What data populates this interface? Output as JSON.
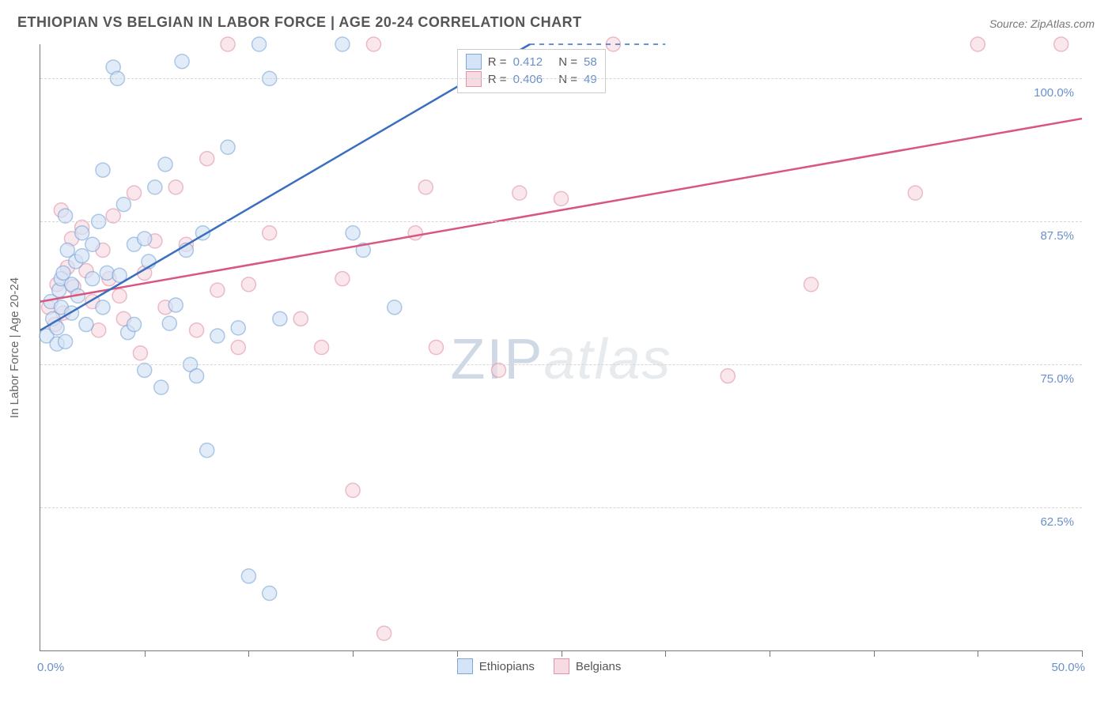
{
  "title": "ETHIOPIAN VS BELGIAN IN LABOR FORCE | AGE 20-24 CORRELATION CHART",
  "source": "Source: ZipAtlas.com",
  "watermark": {
    "zip": "ZIP",
    "atlas": "atlas"
  },
  "axes": {
    "ylabel": "In Labor Force | Age 20-24",
    "xlim": [
      0,
      50
    ],
    "ylim": [
      50,
      103
    ],
    "xticks": [
      5,
      10,
      15,
      20,
      25,
      30,
      35,
      40,
      45,
      50
    ],
    "ygrid": [
      62.5,
      75.0,
      87.5,
      100.0
    ],
    "ygrid_labels": [
      "62.5%",
      "75.0%",
      "87.5%",
      "100.0%"
    ],
    "xmin_label": "0.0%",
    "xmax_label": "50.0%",
    "grid_color": "#d6d6d6",
    "axis_color": "#777777",
    "label_color_blue": "#6a90c9",
    "label_fontsize": 15
  },
  "series": {
    "ethiopians": {
      "label": "Ethiopians",
      "marker_radius": 9,
      "fill": "#d4e3f6",
      "stroke": "#7ea8d8",
      "line_stroke": "#3a6fbf",
      "line_width": 2.5,
      "r_value": "0.412",
      "n_value": "58",
      "regression": {
        "x1": 0,
        "y1": 78.0,
        "x2": 23.5,
        "y2": 103.0,
        "cont_x2": 30,
        "cont_y2": 103.0
      },
      "points": [
        [
          0.3,
          77.5
        ],
        [
          0.5,
          80.5
        ],
        [
          0.6,
          79.0
        ],
        [
          0.8,
          78.2
        ],
        [
          0.8,
          76.8
        ],
        [
          0.9,
          81.5
        ],
        [
          1.0,
          80.0
        ],
        [
          1.0,
          82.5
        ],
        [
          1.1,
          83.0
        ],
        [
          1.2,
          77.0
        ],
        [
          1.2,
          88.0
        ],
        [
          1.3,
          85.0
        ],
        [
          1.5,
          82.0
        ],
        [
          1.5,
          79.5
        ],
        [
          1.7,
          84.0
        ],
        [
          1.8,
          81.0
        ],
        [
          2.0,
          86.5
        ],
        [
          2.0,
          84.5
        ],
        [
          2.2,
          78.5
        ],
        [
          2.5,
          85.5
        ],
        [
          2.5,
          82.5
        ],
        [
          2.8,
          87.5
        ],
        [
          3.0,
          80.0
        ],
        [
          3.0,
          92.0
        ],
        [
          3.2,
          83.0
        ],
        [
          3.5,
          101.0
        ],
        [
          3.7,
          100.0
        ],
        [
          3.8,
          82.8
        ],
        [
          4.0,
          89.0
        ],
        [
          4.2,
          77.8
        ],
        [
          4.5,
          85.5
        ],
        [
          4.5,
          78.5
        ],
        [
          5.0,
          86.0
        ],
        [
          5.0,
          74.5
        ],
        [
          5.2,
          84.0
        ],
        [
          5.5,
          90.5
        ],
        [
          5.8,
          73.0
        ],
        [
          6.0,
          92.5
        ],
        [
          6.2,
          78.6
        ],
        [
          6.5,
          80.2
        ],
        [
          6.8,
          101.5
        ],
        [
          7.0,
          85.0
        ],
        [
          7.2,
          75.0
        ],
        [
          7.5,
          74.0
        ],
        [
          7.8,
          86.5
        ],
        [
          8.0,
          67.5
        ],
        [
          8.5,
          77.5
        ],
        [
          9.0,
          94.0
        ],
        [
          9.5,
          78.2
        ],
        [
          10.0,
          56.5
        ],
        [
          10.5,
          103.0
        ],
        [
          11.0,
          100.0
        ],
        [
          11.0,
          55.0
        ],
        [
          11.5,
          79.0
        ],
        [
          14.5,
          103.0
        ],
        [
          15.0,
          86.5
        ],
        [
          15.5,
          85.0
        ],
        [
          17.0,
          80.0
        ]
      ]
    },
    "belgians": {
      "label": "Belgians",
      "marker_radius": 9,
      "fill": "#f6dbe3",
      "stroke": "#e195ac",
      "line_stroke": "#d8567f",
      "line_width": 2.5,
      "r_value": "0.406",
      "n_value": "49",
      "regression": {
        "x1": 0,
        "y1": 80.5,
        "x2": 50,
        "y2": 96.5
      },
      "points": [
        [
          0.4,
          80.0
        ],
        [
          0.7,
          78.5
        ],
        [
          0.8,
          82.0
        ],
        [
          1.0,
          88.5
        ],
        [
          1.1,
          79.5
        ],
        [
          1.3,
          83.5
        ],
        [
          1.5,
          86.0
        ],
        [
          1.6,
          81.8
        ],
        [
          2.0,
          87.0
        ],
        [
          2.2,
          83.2
        ],
        [
          2.5,
          80.5
        ],
        [
          2.8,
          78.0
        ],
        [
          3.0,
          85.0
        ],
        [
          3.3,
          82.5
        ],
        [
          3.5,
          88.0
        ],
        [
          3.8,
          81.0
        ],
        [
          4.0,
          79.0
        ],
        [
          4.5,
          90.0
        ],
        [
          4.8,
          76.0
        ],
        [
          5.0,
          83.0
        ],
        [
          5.5,
          85.8
        ],
        [
          6.0,
          80.0
        ],
        [
          6.5,
          90.5
        ],
        [
          7.0,
          85.5
        ],
        [
          7.5,
          78.0
        ],
        [
          8.0,
          93.0
        ],
        [
          8.5,
          81.5
        ],
        [
          9.0,
          103.0
        ],
        [
          9.5,
          76.5
        ],
        [
          10.0,
          82.0
        ],
        [
          11.0,
          86.5
        ],
        [
          12.5,
          79.0
        ],
        [
          13.5,
          76.5
        ],
        [
          14.5,
          82.5
        ],
        [
          15.0,
          64.0
        ],
        [
          16.0,
          103.0
        ],
        [
          16.5,
          51.5
        ],
        [
          18.0,
          86.5
        ],
        [
          18.5,
          90.5
        ],
        [
          19.0,
          76.5
        ],
        [
          22.0,
          74.5
        ],
        [
          23.0,
          90.0
        ],
        [
          25.0,
          89.5
        ],
        [
          27.5,
          103.0
        ],
        [
          33.0,
          74.0
        ],
        [
          37.0,
          82.0
        ],
        [
          42.0,
          90.0
        ],
        [
          45.0,
          103.0
        ],
        [
          49.0,
          103.0
        ]
      ]
    }
  },
  "stat_box": {
    "r_label": "R =",
    "n_label": "N ="
  },
  "legend": {
    "items": [
      "ethiopians",
      "belgians"
    ]
  }
}
